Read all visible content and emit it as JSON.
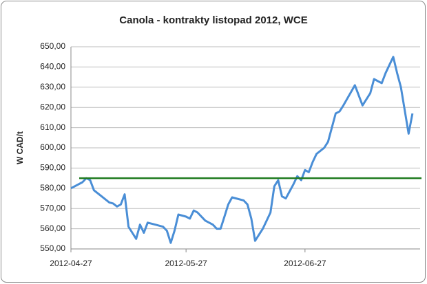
{
  "chart_data": {
    "type": "line",
    "title": "Canola - kontrakty listopad 2012, WCE",
    "y_label": "W CAD/t",
    "x": [
      "2012-04-27",
      "2012-04-30",
      "2012-05-01",
      "2012-05-02",
      "2012-05-03",
      "2012-05-05",
      "2012-05-07",
      "2012-05-08",
      "2012-05-09",
      "2012-05-10",
      "2012-05-11",
      "2012-05-12",
      "2012-05-13",
      "2012-05-14",
      "2012-05-15",
      "2012-05-16",
      "2012-05-17",
      "2012-05-19",
      "2012-05-21",
      "2012-05-22",
      "2012-05-23",
      "2012-05-24",
      "2012-05-25",
      "2012-05-27",
      "2012-05-28",
      "2012-05-29",
      "2012-05-30",
      "2012-06-01",
      "2012-06-03",
      "2012-06-04",
      "2012-06-05",
      "2012-06-06",
      "2012-06-07",
      "2012-06-08",
      "2012-06-09",
      "2012-06-11",
      "2012-06-12",
      "2012-06-13",
      "2012-06-14",
      "2012-06-16",
      "2012-06-18",
      "2012-06-19",
      "2012-06-20",
      "2012-06-21",
      "2012-06-22",
      "2012-06-24",
      "2012-06-25",
      "2012-06-26",
      "2012-06-27",
      "2012-06-28",
      "2012-06-29",
      "2012-06-30",
      "2012-07-02",
      "2012-07-03",
      "2012-07-05",
      "2012-07-06",
      "2012-07-07",
      "2012-07-10",
      "2012-07-12",
      "2012-07-14",
      "2012-07-15",
      "2012-07-17",
      "2012-07-18",
      "2012-07-20",
      "2012-07-21",
      "2012-07-22",
      "2012-07-24",
      "2012-07-25"
    ],
    "series": [
      {
        "name": "Canola",
        "color": "#4a8ed6",
        "values": [
          580,
          583,
          585,
          584,
          579,
          576,
          573,
          572.5,
          571,
          572,
          577,
          561,
          558,
          555,
          562,
          558,
          563,
          562,
          561,
          559,
          553,
          559,
          567,
          566,
          565,
          569,
          568,
          564,
          562,
          560,
          560,
          566,
          572,
          575.5,
          575,
          574,
          572,
          565,
          554,
          560,
          568,
          581,
          584,
          576,
          575,
          582,
          586,
          584,
          589,
          588,
          593,
          597,
          600,
          603,
          617,
          618,
          621,
          631,
          621,
          627,
          634,
          632,
          637,
          645,
          637,
          630,
          607,
          617
        ]
      }
    ],
    "reference_line": {
      "value": 585,
      "color": "#1f7a1f"
    },
    "xlim": [
      "2012-04-27",
      "2012-07-27"
    ],
    "xticks": [
      "2012-04-27",
      "2012-05-27",
      "2012-06-27"
    ],
    "ylim": [
      550,
      650
    ],
    "yticks": [
      {
        "value": 550,
        "label": "550,00"
      },
      {
        "value": 560,
        "label": "560,00"
      },
      {
        "value": 570,
        "label": "570,00"
      },
      {
        "value": 580,
        "label": "580,00"
      },
      {
        "value": 590,
        "label": "590,00"
      },
      {
        "value": 600,
        "label": "600,00"
      },
      {
        "value": 610,
        "label": "610,00"
      },
      {
        "value": 620,
        "label": "620,00"
      },
      {
        "value": 630,
        "label": "630,00"
      },
      {
        "value": 640,
        "label": "640,00"
      },
      {
        "value": 650,
        "label": "650,00"
      }
    ],
    "grid": true
  }
}
